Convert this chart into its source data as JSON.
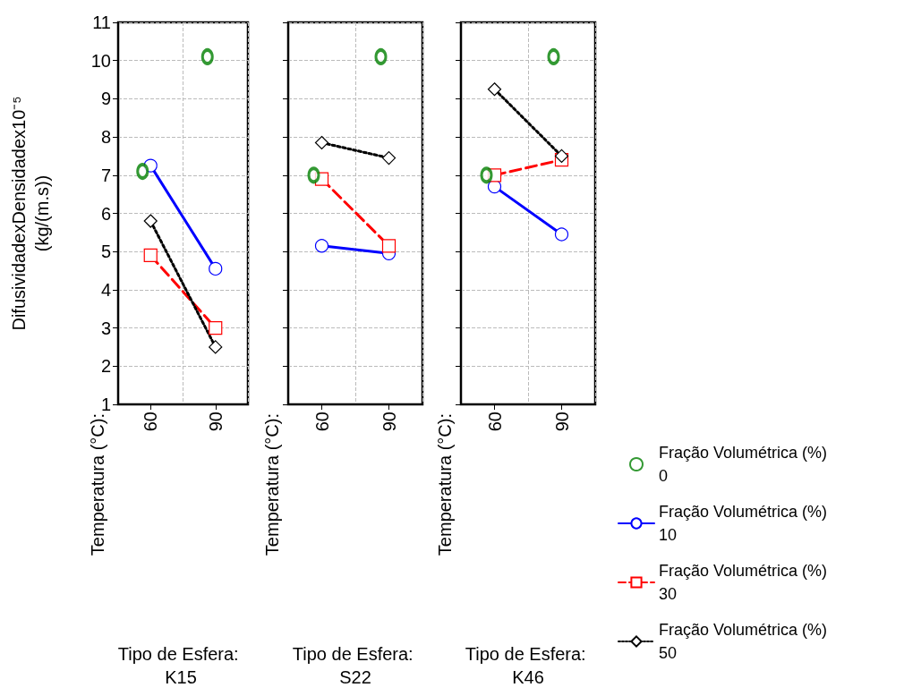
{
  "chart_data": [
    {
      "type": "line",
      "title": "Tipo de Esfera: K15",
      "annotations": [
        "Temperatura (°C):"
      ],
      "ylabel": "DifusividadexDensidadex10⁻⁵ (kg/(m.s))",
      "categories": [
        "60",
        "90"
      ],
      "ylim": [
        1,
        11
      ],
      "yticks": [
        1,
        2,
        3,
        4,
        5,
        6,
        7,
        8,
        9,
        10,
        11
      ],
      "grid": true,
      "legend": false,
      "series": [
        {
          "type": "scatter",
          "color": "#008000",
          "marker": "circle",
          "values": [
            7.1,
            10.1
          ]
        },
        {
          "color": "#0000ff",
          "marker": "circle",
          "line_style": "solid",
          "values": [
            7.25,
            4.55
          ]
        },
        {
          "color": "#ff0000",
          "marker": "square",
          "line_style": "dashed",
          "values": [
            4.9,
            3.0
          ]
        },
        {
          "color": "#000000",
          "marker": "diamond",
          "line_style": "dotted",
          "values": [
            5.8,
            2.5
          ]
        }
      ]
    },
    {
      "type": "line",
      "title": "Tipo de Esfera: S22",
      "annotations": [
        "Temperatura (°C):"
      ],
      "categories": [
        "60",
        "90"
      ],
      "ylim": [
        1,
        11
      ],
      "yticks": [
        1,
        2,
        3,
        4,
        5,
        6,
        7,
        8,
        9,
        10,
        11
      ],
      "grid": true,
      "legend": false,
      "tick_labels": "x",
      "series": [
        {
          "type": "scatter",
          "color": "#008000",
          "marker": "circle",
          "values": [
            7.0,
            10.1
          ]
        },
        {
          "color": "#0000ff",
          "marker": "circle",
          "line_style": "solid",
          "values": [
            5.15,
            4.95
          ]
        },
        {
          "color": "#ff0000",
          "marker": "square",
          "line_style": "dashed",
          "values": [
            6.9,
            5.15
          ]
        },
        {
          "color": "#000000",
          "marker": "diamond",
          "line_style": "dotted",
          "values": [
            7.85,
            7.45
          ]
        }
      ]
    },
    {
      "type": "line",
      "title": "Tipo de Esfera: K46",
      "annotations": [
        "Temperatura (°C):"
      ],
      "categories": [
        "60",
        "90"
      ],
      "ylim": [
        1,
        11
      ],
      "yticks": [
        1,
        2,
        3,
        4,
        5,
        6,
        7,
        8,
        9,
        10,
        11
      ],
      "grid": true,
      "legend": "right",
      "tick_labels": "x",
      "series": [
        {
          "type": "scatter",
          "name": "Fração Volumétrica (%) 0",
          "color": "#008000",
          "marker": "circle",
          "values": [
            7.0,
            10.1
          ]
        },
        {
          "name": "Fração Volumétrica (%) 10",
          "color": "#0000ff",
          "marker": "circle",
          "line_style": "solid",
          "values": [
            6.7,
            5.45
          ]
        },
        {
          "name": "Fração Volumétrica (%) 30",
          "color": "#ff0000",
          "marker": "square",
          "line_style": "dashed",
          "values": [
            7.0,
            7.4
          ]
        },
        {
          "name": "Fração Volumétrica (%) 50",
          "color": "#000000",
          "marker": "diamond",
          "line_style": "dotted",
          "values": [
            9.25,
            7.5
          ]
        }
      ]
    }
  ]
}
